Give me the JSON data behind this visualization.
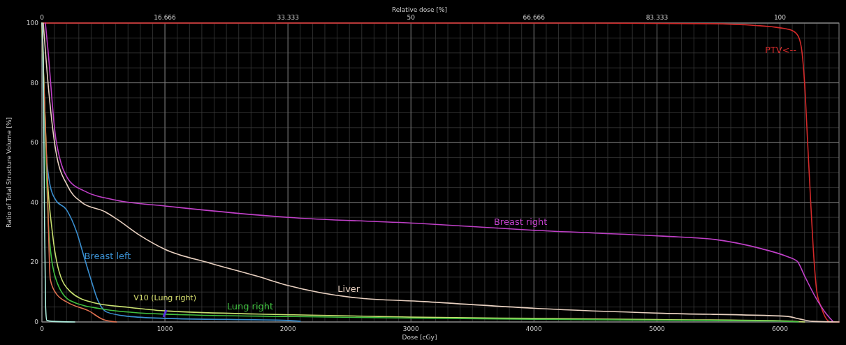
{
  "chart_data": {
    "type": "line",
    "xlabel": "Dose [cGy]",
    "ylabel": "Ratio of Total Structure Volume [%]",
    "x2label": "Relative dose [%]",
    "xlim": [
      0,
      6480
    ],
    "xticks": [
      0,
      1000,
      2000,
      3000,
      4000,
      5000,
      6000
    ],
    "x2lim": [
      0,
      108
    ],
    "x2ticks": [
      0,
      16.666,
      33.333,
      50,
      66.666,
      83.333,
      100
    ],
    "ylim": [
      0,
      100
    ],
    "yticks": [
      0,
      20,
      40,
      60,
      80,
      100
    ],
    "grid": true,
    "marker": "none",
    "line_style": "solid",
    "annotations": [
      {
        "text": "V10 (Lung right)",
        "x": 1000,
        "y": 2.6
      }
    ],
    "series": [
      {
        "name": "PTV<--",
        "color": "#d42a2a",
        "x": [
          0,
          4500,
          5400,
          5800,
          6000,
          6100,
          6150,
          6180,
          6200,
          6225,
          6250,
          6278,
          6300,
          6335,
          6370,
          6410,
          6480
        ],
        "values": [
          100,
          100,
          99.8,
          99.2,
          98.4,
          97.5,
          95.5,
          90,
          80,
          60,
          40,
          20,
          10,
          5,
          1.5,
          0,
          0
        ]
      },
      {
        "name": "Breast right",
        "color": "#c040c8",
        "x": [
          28,
          47,
          114,
          227,
          341,
          606,
          1000,
          2000,
          3100,
          4030,
          5050,
          5470,
          5850,
          6050,
          6140,
          6200,
          6290,
          6375,
          6430
        ],
        "values": [
          100,
          92,
          61,
          47,
          43.9,
          40.7,
          38.8,
          35,
          32.9,
          30.6,
          28.7,
          27.6,
          24.5,
          22,
          20.3,
          15.4,
          8.2,
          2.8,
          0.2
        ]
      },
      {
        "name": "Liver",
        "color": "#e8d0c0",
        "x": [
          11,
          57,
          114,
          210,
          324,
          511,
          606,
          795,
          1000,
          1364,
          1742,
          2000,
          2523,
          3108,
          4034,
          5051,
          6051,
          6170,
          6261,
          6480
        ],
        "values": [
          100,
          76.6,
          57,
          45.4,
          40,
          36.9,
          34.5,
          29,
          24.3,
          19.7,
          15.4,
          12.2,
          8.2,
          6.8,
          4.5,
          2.9,
          1.9,
          0.9,
          0.2,
          0
        ]
      },
      {
        "name": "Breast left",
        "color": "#3a8fd0",
        "x": [
          0,
          28,
          68,
          114,
          199,
          284,
          341,
          398,
          455,
          528,
          699,
          1000,
          2006,
          2100
        ],
        "values": [
          100,
          61,
          45.4,
          40.7,
          37.6,
          29.9,
          22,
          14.3,
          7.2,
          3.3,
          1.9,
          1.2,
          0.5,
          0.2
        ]
      },
      {
        "color": "#c8e070",
        "x": [
          0,
          38,
          85,
          131,
          227,
          415,
          699,
          1000,
          2045,
          3000,
          4000,
          5000,
          6000,
          6200
        ],
        "values": [
          100,
          53,
          29.9,
          18.2,
          10.3,
          6.5,
          4.9,
          3.7,
          2.4,
          1.6,
          1.2,
          0.8,
          0.4,
          0
        ]
      },
      {
        "name": "Lung right",
        "color": "#40c040",
        "x": [
          0,
          28,
          57,
          114,
          227,
          511,
          1000,
          2045,
          3000,
          4000,
          5000,
          6000,
          6150
        ],
        "values": [
          100,
          61,
          30,
          14.3,
          7.2,
          4.2,
          2.6,
          1.8,
          1.3,
          0.9,
          0.6,
          0.3,
          0
        ]
      },
      {
        "color": "#e07050",
        "x": [
          0,
          15,
          40,
          68,
          114,
          210,
          381,
          494,
          606
        ],
        "values": [
          100,
          80,
          53,
          14.3,
          9.6,
          6.5,
          3.7,
          0.9,
          0
        ]
      },
      {
        "color": "#b0f0e0",
        "x": [
          0,
          10,
          20,
          30,
          40,
          80,
          267
        ],
        "values": [
          100,
          90,
          40,
          5,
          0.5,
          0.2,
          0
        ]
      }
    ]
  }
}
